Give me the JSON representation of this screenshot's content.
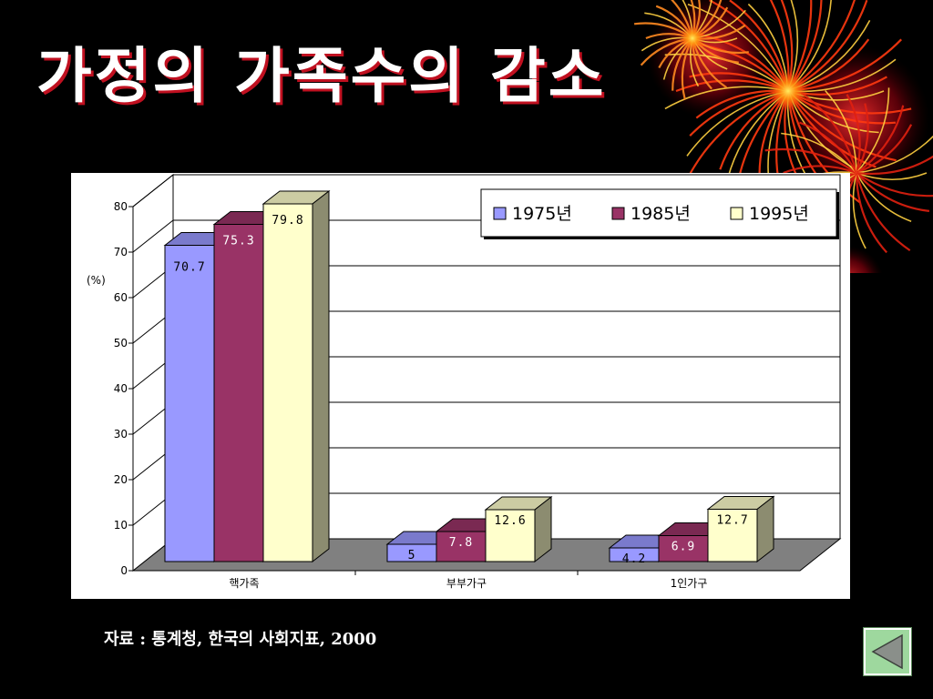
{
  "slide": {
    "title": "가정의 가족수의 감소",
    "source": "자료 : 통계청, 한국의 사회지표, 2000"
  },
  "colors": {
    "background": "#000000",
    "title_shadow": "#c01020"
  },
  "icons": {
    "back": "back-triangle-icon",
    "decoration": "firework-icon"
  },
  "chart_data": {
    "type": "bar",
    "three_d": true,
    "title": "",
    "xlabel": "",
    "ylabel": "(%)",
    "ylim": [
      0,
      80
    ],
    "yticks": [
      0,
      10,
      20,
      30,
      40,
      50,
      60,
      70,
      80
    ],
    "grid": true,
    "legend_position": "top-right",
    "categories": [
      "핵가족",
      "부부가구",
      "1인가구"
    ],
    "series": [
      {
        "name": "1975년",
        "color": "#9999ff",
        "values": [
          70.7,
          5,
          4.2
        ],
        "labels": [
          "70.7",
          "5",
          "4.2"
        ]
      },
      {
        "name": "1985년",
        "color": "#993366",
        "values": [
          75.3,
          7.8,
          6.9
        ],
        "labels": [
          "75.3",
          "7.8",
          "6.9"
        ]
      },
      {
        "name": "1995년",
        "color": "#ffffcc",
        "values": [
          79.8,
          12.6,
          12.7
        ],
        "labels": [
          "79.8",
          "12.6",
          "12.7"
        ]
      }
    ]
  }
}
